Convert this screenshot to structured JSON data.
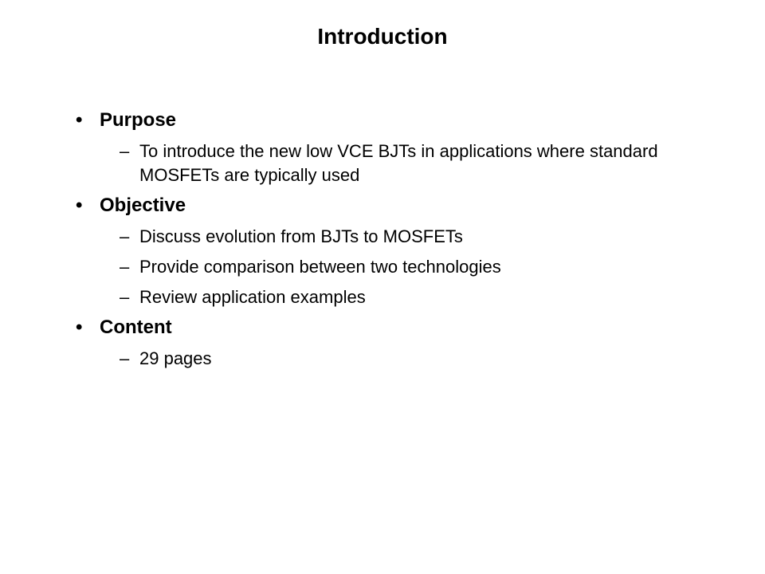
{
  "slide": {
    "title": "Introduction",
    "background_color": "#ffffff",
    "text_color": "#000000",
    "title_fontsize": 28,
    "header_fontsize": 24,
    "subitem_fontsize": 22,
    "sections": [
      {
        "header": "Purpose",
        "items": [
          "To introduce the new low VCE BJTs in applications where standard MOSFETs are typically used"
        ]
      },
      {
        "header": "Objective",
        "items": [
          "Discuss evolution from BJTs to MOSFETs",
          "Provide comparison between two technologies",
          "Review application examples"
        ]
      },
      {
        "header": "Content",
        "items": [
          "29 pages"
        ]
      }
    ],
    "bullet_l1": "•",
    "bullet_l2": "–"
  }
}
